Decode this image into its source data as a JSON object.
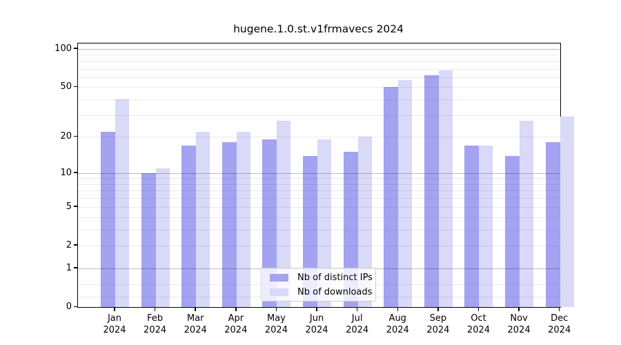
{
  "title": "hugene.1.0.st.v1frmavecs 2024",
  "chart_data": {
    "type": "bar",
    "title": "hugene.1.0.st.v1frmavecs 2024",
    "xlabel": "",
    "ylabel": "",
    "scale": "log10(1+y) pseudo-log axis, 0 at baseline",
    "categories": [
      "Jan",
      "Feb",
      "Mar",
      "Apr",
      "May",
      "Jun",
      "Jul",
      "Aug",
      "Sep",
      "Oct",
      "Nov",
      "Dec"
    ],
    "year_label": "2024",
    "series": [
      {
        "name": "Nb of distinct IPs",
        "color": "#a3a3f2",
        "values": [
          22,
          10,
          17,
          18,
          19,
          14,
          15,
          50,
          62,
          17,
          14,
          18
        ]
      },
      {
        "name": "Nb of downloads",
        "color": "#d9d9f8",
        "values": [
          40,
          11,
          22,
          22,
          27,
          19,
          20,
          57,
          68,
          17,
          27,
          29
        ]
      }
    ],
    "yticks": [
      100,
      50,
      20,
      10,
      5,
      2,
      1,
      0
    ],
    "ylim": [
      0,
      111
    ],
    "major_gridlines": [
      1,
      10,
      100
    ],
    "minor_gridlines": [
      0.2,
      0.5,
      2,
      3,
      4,
      5,
      6,
      7,
      8,
      9,
      20,
      30,
      40,
      50,
      60,
      70,
      80,
      90
    ],
    "grid": true,
    "legend_position": "bottom-center"
  },
  "legend": {
    "items": [
      {
        "label": "Nb of distinct IPs"
      },
      {
        "label": "Nb of downloads"
      }
    ]
  },
  "colors": {
    "background": "#ffffff",
    "axis": "#000000",
    "bar_distinct_ips": "#a3a3f2",
    "bar_downloads": "#d9d9f8",
    "legend_border": "#cccccc"
  }
}
